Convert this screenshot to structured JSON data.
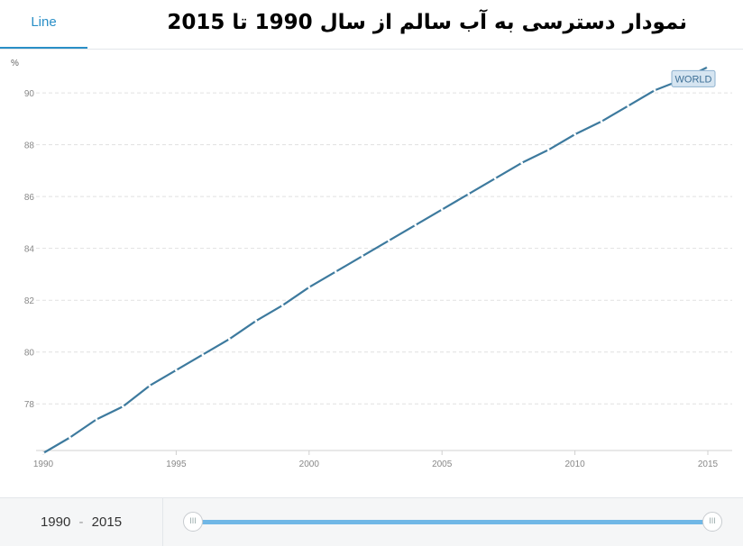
{
  "tabs": {
    "line_label": "Line"
  },
  "title": "نمودار دسترسی به آب سالم از سال 1990 تا 2015",
  "range": {
    "start": "1990",
    "end": "2015",
    "separator": "-"
  },
  "slider": {
    "start_value": 1990,
    "end_value": 2015,
    "handle_glyph": "III"
  },
  "chart_data": {
    "type": "line",
    "ylabel": "%",
    "xlabel": "",
    "xlim": [
      1990,
      2015
    ],
    "ylim": [
      76.2,
      91.5
    ],
    "yticks": [
      78,
      80,
      82,
      84,
      86,
      88,
      90
    ],
    "xticks": [
      1990,
      1995,
      2000,
      2005,
      2010,
      2015
    ],
    "grid": true,
    "series": [
      {
        "name": "WORLD",
        "color": "#3d7a9e",
        "x": [
          1990,
          1991,
          1992,
          1993,
          1994,
          1995,
          1996,
          1997,
          1998,
          1999,
          2000,
          2001,
          2002,
          2003,
          2004,
          2005,
          2006,
          2007,
          2008,
          2009,
          2010,
          2011,
          2012,
          2013,
          2014,
          2015
        ],
        "values": [
          76.1,
          76.7,
          77.4,
          77.9,
          78.7,
          79.3,
          79.9,
          80.5,
          81.2,
          81.8,
          82.5,
          83.1,
          83.7,
          84.3,
          84.9,
          85.5,
          86.1,
          86.7,
          87.3,
          87.8,
          88.4,
          88.9,
          89.5,
          90.1,
          90.5,
          91.0
        ]
      }
    ],
    "colors": {
      "grid": "#e1e1e1",
      "axis": "#d0d0d0",
      "tick_text": "#888888",
      "label_bg": "#d6e5f1",
      "label_border": "#8fb2cf",
      "label_text": "#3d6f96"
    }
  }
}
